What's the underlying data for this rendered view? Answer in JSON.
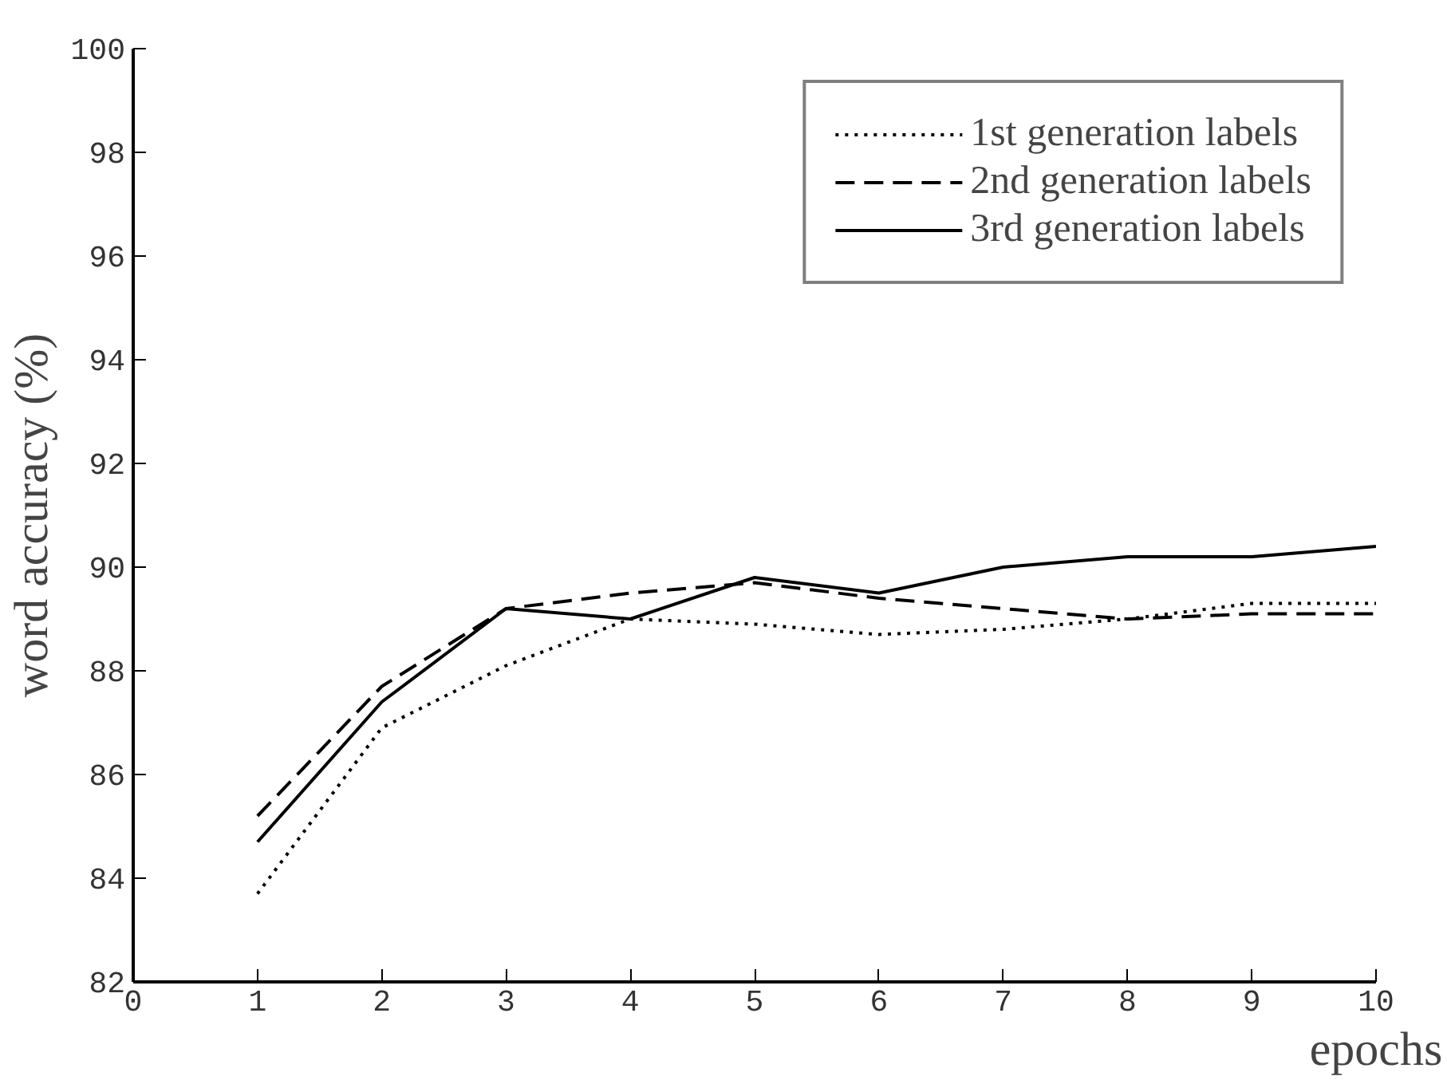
{
  "chart_data": {
    "type": "line",
    "xlabel": "epochs",
    "ylabel": "word accuracy (%)",
    "x": [
      1,
      2,
      3,
      4,
      5,
      6,
      7,
      8,
      9,
      10
    ],
    "series": [
      {
        "name": "1st generation labels",
        "color": "#000000",
        "line_style": "dotted",
        "values": [
          83.7,
          86.9,
          88.1,
          89.0,
          88.9,
          88.7,
          88.8,
          89.0,
          89.3,
          89.3
        ]
      },
      {
        "name": "2nd generation labels",
        "color": "#000000",
        "line_style": "dashed",
        "values": [
          85.2,
          87.7,
          89.2,
          89.5,
          89.7,
          89.4,
          89.2,
          89.0,
          89.1,
          89.1
        ]
      },
      {
        "name": "3rd generation labels",
        "color": "#000000",
        "line_style": "solid",
        "values": [
          84.7,
          87.4,
          89.2,
          89.0,
          89.8,
          89.5,
          90.0,
          90.2,
          90.2,
          90.4
        ]
      }
    ],
    "xlim": [
      0,
      10
    ],
    "xticks": [
      0,
      1,
      2,
      3,
      4,
      5,
      6,
      7,
      8,
      9,
      10
    ],
    "ylim": [
      82,
      100
    ],
    "yticks": [
      82,
      84,
      86,
      88,
      90,
      92,
      94,
      96,
      98,
      100
    ],
    "grid": false,
    "legend": "top right"
  }
}
